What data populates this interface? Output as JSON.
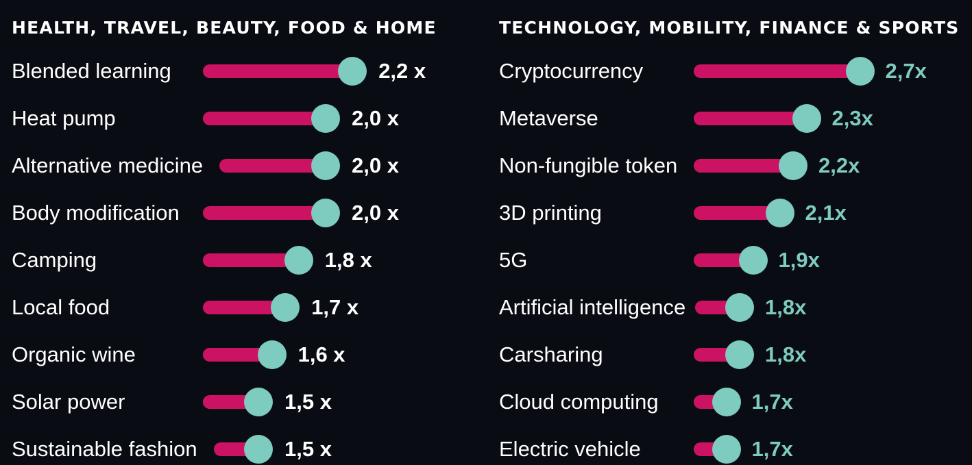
{
  "colors": {
    "background": "#0a0c13",
    "bar": "#cc1262",
    "dot": "#7ecbbf",
    "left_value_text": "#ffffff",
    "right_value_text": "#7ecbbf",
    "label_text": "#ffffff"
  },
  "chart_data": [
    {
      "type": "bar",
      "title": "HEALTH, TRAVEL, BEAUTY, FOOD & HOME",
      "categories": [
        "Blended learning",
        "Heat pump",
        "Alternative medicine",
        "Body modification",
        "Camping",
        "Local food",
        "Organic wine",
        "Solar power",
        "Sustainable fashion"
      ],
      "values": [
        2.2,
        2.0,
        2.0,
        2.0,
        1.8,
        1.7,
        1.6,
        1.5,
        1.5
      ],
      "value_labels": [
        "2,2 x",
        "2,0 x",
        "2,0 x",
        "2,0 x",
        "1,8 x",
        "1,7 x",
        "1,6 x",
        "1,5 x",
        "1,5 x"
      ],
      "xlim": [
        0,
        2.7
      ]
    },
    {
      "type": "bar",
      "title": "TECHNOLOGY, MOBILITY, FINANCE & SPORTS",
      "categories": [
        "Cryptocurrency",
        "Metaverse",
        "Non-fungible token",
        "3D printing",
        "5G",
        "Artificial intelligence",
        "Carsharing",
        "Cloud computing",
        "Electric vehicle"
      ],
      "values": [
        2.7,
        2.3,
        2.2,
        2.1,
        1.9,
        1.8,
        1.8,
        1.7,
        1.7
      ],
      "value_labels": [
        "2,7x",
        "2,3x",
        "2,2x",
        "2,1x",
        "1,9x",
        "1,8x",
        "1,8x",
        "1,7x",
        "1,7x"
      ],
      "xlim": [
        0,
        2.7
      ]
    }
  ]
}
